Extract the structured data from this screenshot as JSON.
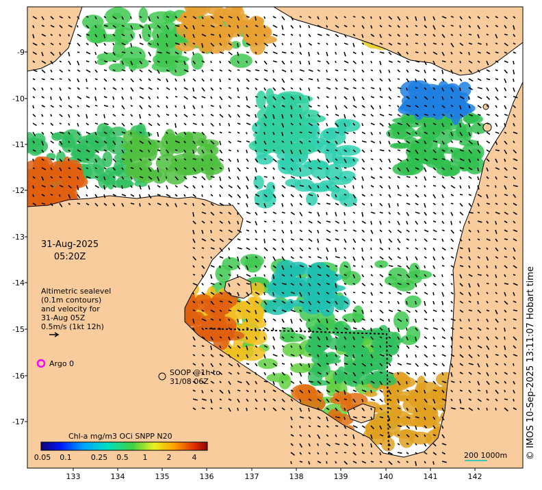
{
  "map": {
    "date": "31-Aug-2025",
    "time": "05:20Z",
    "credit": "© IMOS 10-Sep-2025 13:11:07 Hobart time",
    "lat_ticks": [
      "-9",
      "-10",
      "-11",
      "-12",
      "-13",
      "-14",
      "-15",
      "-16",
      "-17"
    ],
    "lon_ticks": [
      "133",
      "134",
      "135",
      "136",
      "137",
      "138",
      "139",
      "140",
      "141",
      "142"
    ],
    "altimetry_note": [
      "Altimetric sealevel",
      "(0.1m contours)",
      "and velocity for",
      "31-Aug 05Z",
      "0.5m/s (1kt 12h)"
    ],
    "argo_label": "Argo 0",
    "soop_label": [
      "SOOP @1h to",
      "31/08 06Z"
    ],
    "scale_label": "200  1000m",
    "colorbar": {
      "title": "Chl-a mg/m3 OCi SNPP N20",
      "ticks": [
        "0.05",
        "0.1",
        "0.25",
        "0.5",
        "1",
        "2",
        "4"
      ]
    },
    "colors": {
      "land": "#f8cc9c",
      "coast": "#000000",
      "argo": "#ff00ff",
      "scale": "#00c0c0"
    }
  }
}
